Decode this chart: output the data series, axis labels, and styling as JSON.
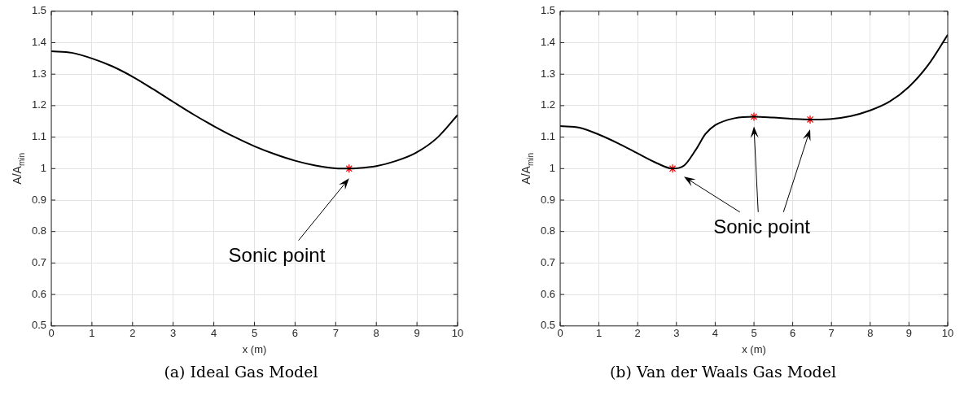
{
  "chart_data": [
    {
      "type": "line",
      "xlabel": "x (m)",
      "ylabel": "A/A$_{min}$",
      "xlim": [
        0,
        10
      ],
      "xticks": [
        0,
        1,
        2,
        3,
        4,
        5,
        6,
        7,
        8,
        9,
        10
      ],
      "ylim": [
        0.5,
        1.5
      ],
      "yticks": [
        0.5,
        0.6,
        0.7,
        0.8,
        0.9,
        1,
        1.1,
        1.2,
        1.3,
        1.4,
        1.5
      ],
      "grid": true,
      "annotations": [
        "Sonic point",
        "(a) Ideal Gas Model"
      ],
      "series": [
        {
          "type": "line",
          "color": "#000000",
          "marker": "none",
          "x": [
            0,
            0.5,
            1,
            1.5,
            2,
            2.5,
            3,
            3.5,
            4,
            4.5,
            5,
            5.5,
            6,
            6.5,
            7,
            7.33,
            7.5,
            8,
            8.5,
            9,
            9.5,
            10
          ],
          "values": [
            1.373,
            1.368,
            1.35,
            1.325,
            1.292,
            1.253,
            1.212,
            1.172,
            1.135,
            1.101,
            1.071,
            1.046,
            1.025,
            1.01,
            1.001,
            1.0,
            1.001,
            1.008,
            1.025,
            1.052,
            1.098,
            1.17
          ]
        },
        {
          "type": "scatter",
          "color": "#ff0000",
          "marker": "cross",
          "x": [
            7.33
          ],
          "values": [
            1.0
          ]
        }
      ]
    },
    {
      "type": "line",
      "xlabel": "x (m)",
      "ylabel": "A/A$_{min}$",
      "xlim": [
        0,
        10
      ],
      "xticks": [
        0,
        1,
        2,
        3,
        4,
        5,
        6,
        7,
        8,
        9,
        10
      ],
      "ylim": [
        0.5,
        1.5
      ],
      "yticks": [
        0.5,
        0.6,
        0.7,
        0.8,
        0.9,
        1,
        1.1,
        1.2,
        1.3,
        1.4,
        1.5
      ],
      "grid": true,
      "annotations": [
        "Sonic point",
        "(b) Van der Waals Gas Model"
      ],
      "series": [
        {
          "type": "line",
          "color": "#000000",
          "marker": "none",
          "x": [
            0,
            0.5,
            1,
            1.5,
            2,
            2.5,
            2.9,
            3.2,
            3.5,
            3.75,
            4,
            4.5,
            5,
            5.5,
            6,
            6.45,
            7,
            7.5,
            8,
            8.5,
            9,
            9.5,
            10
          ],
          "values": [
            1.135,
            1.13,
            1.108,
            1.08,
            1.048,
            1.017,
            1.0,
            1.01,
            1.06,
            1.11,
            1.138,
            1.16,
            1.165,
            1.162,
            1.158,
            1.156,
            1.158,
            1.167,
            1.185,
            1.213,
            1.26,
            1.33,
            1.425
          ]
        },
        {
          "type": "scatter",
          "color": "#ff0000",
          "marker": "cross",
          "x": [
            2.9,
            5,
            6.45
          ],
          "values": [
            1.0,
            1.165,
            1.156
          ]
        }
      ]
    }
  ]
}
